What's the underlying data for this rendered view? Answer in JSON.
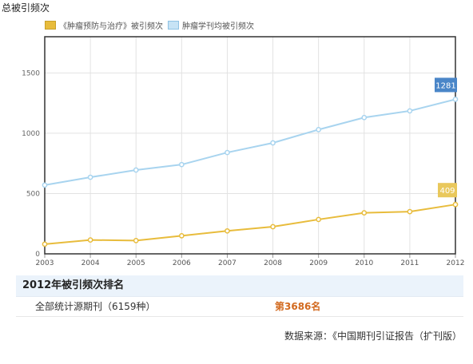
{
  "page": {
    "title": "总被引频次"
  },
  "chart_data": {
    "type": "line",
    "x": [
      "2003",
      "2004",
      "2005",
      "2006",
      "2007",
      "2008",
      "2009",
      "2010",
      "2011",
      "2012"
    ],
    "ylim": [
      0,
      1800
    ],
    "yticks": [
      0,
      500,
      1000,
      1500
    ],
    "grid": true,
    "legend_position": "top-left",
    "series": [
      {
        "name": "《肿瘤预防与治疗》被引频次",
        "color": "#e8bc3c",
        "values": [
          80,
          115,
          110,
          150,
          190,
          225,
          285,
          340,
          350,
          409
        ]
      },
      {
        "name": "肿瘤学刊均被引频次",
        "color": "#a8d4ef",
        "values": [
          570,
          635,
          695,
          740,
          840,
          920,
          1030,
          1130,
          1185,
          1281
        ]
      }
    ],
    "last_value_labels": [
      "409",
      "1281"
    ],
    "label_colors": {
      "gold": "#e9c85c",
      "blue": "#4a86c8"
    }
  },
  "ranking": {
    "header": "2012年被引频次排名",
    "label": "全部统计源期刊（6159种）",
    "value": "第3686名"
  },
  "source": "数据来源：《中国期刊引证报告（扩刊版）"
}
